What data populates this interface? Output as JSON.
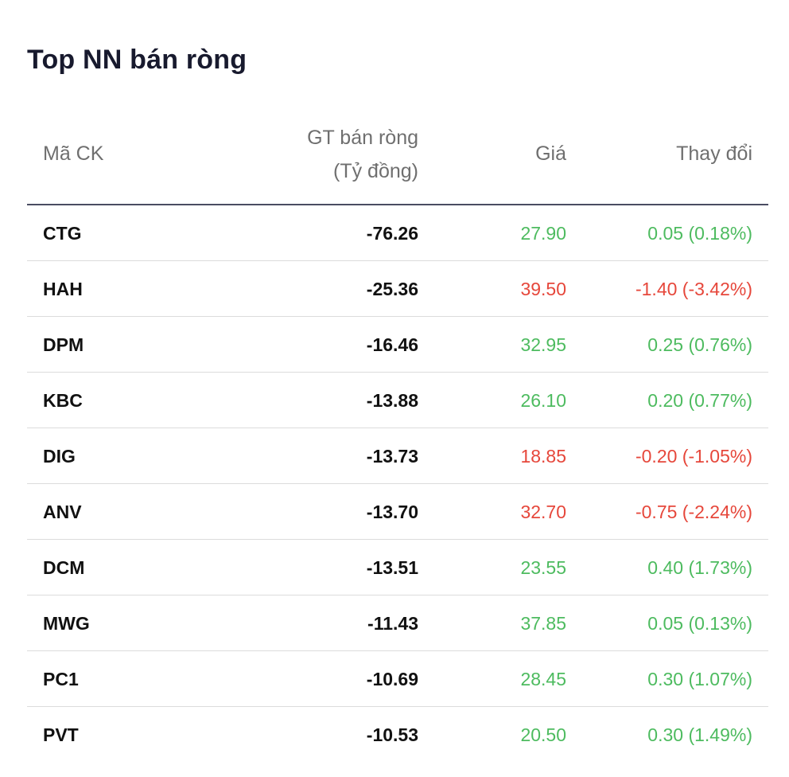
{
  "title": "Top NN bán ròng",
  "columns": {
    "code": "Mã CK",
    "value_line1": "GT bán ròng",
    "value_line2": "(Tỷ đồng)",
    "price": "Giá",
    "change": "Thay đổi"
  },
  "colors": {
    "up": "#4dbb5f",
    "down": "#e6473b"
  },
  "rows": [
    {
      "code": "CTG",
      "value": "-76.26",
      "price": "27.90",
      "change": "0.05 (0.18%)",
      "direction": "up"
    },
    {
      "code": "HAH",
      "value": "-25.36",
      "price": "39.50",
      "change": "-1.40 (-3.42%)",
      "direction": "down"
    },
    {
      "code": "DPM",
      "value": "-16.46",
      "price": "32.95",
      "change": "0.25 (0.76%)",
      "direction": "up"
    },
    {
      "code": "KBC",
      "value": "-13.88",
      "price": "26.10",
      "change": "0.20 (0.77%)",
      "direction": "up"
    },
    {
      "code": "DIG",
      "value": "-13.73",
      "price": "18.85",
      "change": "-0.20 (-1.05%)",
      "direction": "down"
    },
    {
      "code": "ANV",
      "value": "-13.70",
      "price": "32.70",
      "change": "-0.75 (-2.24%)",
      "direction": "down"
    },
    {
      "code": "DCM",
      "value": "-13.51",
      "price": "23.55",
      "change": "0.40 (1.73%)",
      "direction": "up"
    },
    {
      "code": "MWG",
      "value": "-11.43",
      "price": "37.85",
      "change": "0.05 (0.13%)",
      "direction": "up"
    },
    {
      "code": "PC1",
      "value": "-10.69",
      "price": "28.45",
      "change": "0.30 (1.07%)",
      "direction": "up"
    },
    {
      "code": "PVT",
      "value": "-10.53",
      "price": "20.50",
      "change": "0.30 (1.49%)",
      "direction": "up"
    }
  ]
}
